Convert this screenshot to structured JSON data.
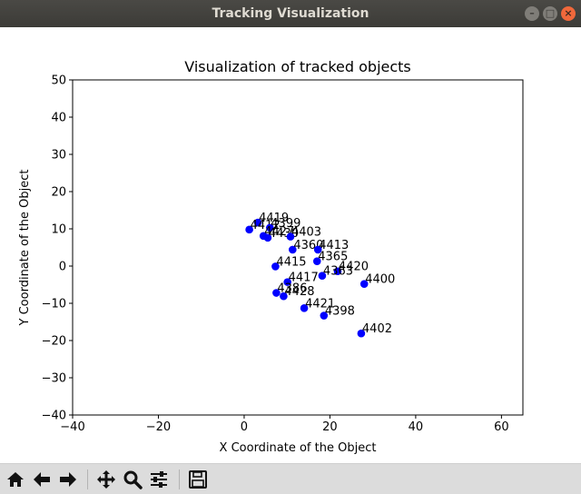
{
  "window": {
    "title": "Tracking Visualization",
    "controls": [
      "minimize",
      "maximize",
      "close"
    ]
  },
  "toolbar": {
    "buttons": [
      {
        "name": "home-button",
        "icon": "home-icon"
      },
      {
        "name": "back-button",
        "icon": "arrow-left-icon"
      },
      {
        "name": "forward-button",
        "icon": "arrow-right-icon"
      },
      {
        "name": "pan-button",
        "icon": "move-icon"
      },
      {
        "name": "zoom-button",
        "icon": "magnifier-icon"
      },
      {
        "name": "configure-subplots-button",
        "icon": "sliders-icon"
      },
      {
        "name": "save-button",
        "icon": "floppy-disk-icon"
      }
    ]
  },
  "chart_data": {
    "type": "scatter",
    "title": "Visualization of tracked objects",
    "xlabel": "X Coordinate of the Object",
    "ylabel": "Y Coordinate of the Object",
    "xlim": [
      -40,
      65
    ],
    "ylim": [
      -40,
      50
    ],
    "xticks": [
      -40,
      -20,
      0,
      20,
      40,
      60
    ],
    "yticks": [
      -40,
      -30,
      -20,
      -10,
      0,
      10,
      20,
      30,
      40,
      50
    ],
    "grid": false,
    "marker_color": "#0000ff",
    "points": [
      {
        "label": "4419",
        "x": 3.2,
        "y": 11.7
      },
      {
        "label": "4412",
        "x": 1.2,
        "y": 9.8
      },
      {
        "label": "4399",
        "x": 6.0,
        "y": 10.3
      },
      {
        "label": "4427",
        "x": 4.5,
        "y": 8.1
      },
      {
        "label": "4430",
        "x": 5.5,
        "y": 7.6
      },
      {
        "label": "4403",
        "x": 10.8,
        "y": 7.9
      },
      {
        "label": "4360",
        "x": 11.3,
        "y": 4.4
      },
      {
        "label": "4413",
        "x": 17.2,
        "y": 4.4
      },
      {
        "label": "4365",
        "x": 17.0,
        "y": 1.3
      },
      {
        "label": "4415",
        "x": 7.3,
        "y": -0.1
      },
      {
        "label": "4420",
        "x": 21.8,
        "y": -1.4
      },
      {
        "label": "4363",
        "x": 18.2,
        "y": -2.6
      },
      {
        "label": "4400",
        "x": 28.0,
        "y": -4.8
      },
      {
        "label": "4417",
        "x": 10.1,
        "y": -4.3
      },
      {
        "label": "4386",
        "x": 7.5,
        "y": -7.2
      },
      {
        "label": "4428",
        "x": 9.2,
        "y": -8.1
      },
      {
        "label": "4421",
        "x": 14.0,
        "y": -11.3
      },
      {
        "label": "4398",
        "x": 18.6,
        "y": -13.3
      },
      {
        "label": "4402",
        "x": 27.3,
        "y": -18.1
      }
    ]
  }
}
